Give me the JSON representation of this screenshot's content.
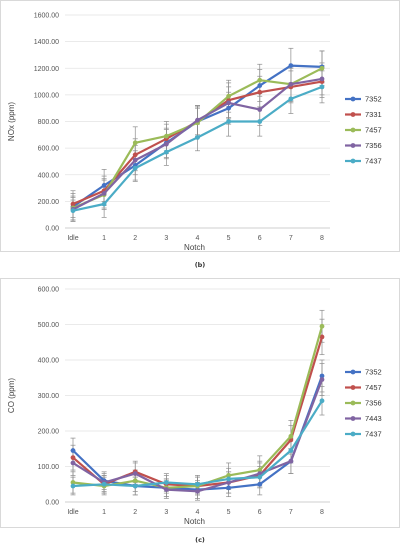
{
  "chart_data": [
    {
      "id": "b",
      "type": "line",
      "caption": "(b)",
      "xlabel": "Notch",
      "ylabel": "NOx (ppm)",
      "categories": [
        "Idle",
        "1",
        "2",
        "3",
        "4",
        "5",
        "6",
        "7",
        "8"
      ],
      "ylim": [
        0,
        1600
      ],
      "yticks": [
        "0.00",
        "200.00",
        "400.00",
        "600.00",
        "800.00",
        "1000.00",
        "1200.00",
        "1400.00",
        "1600.00"
      ],
      "grid": "horizontal",
      "legend": "right",
      "series": [
        {
          "name": "7352",
          "color": "#4472c4",
          "values": [
            160,
            320,
            470,
            640,
            800,
            900,
            1070,
            1220,
            1210
          ],
          "errors": [
            100,
            120,
            110,
            110,
            110,
            120,
            120,
            130,
            120
          ]
        },
        {
          "name": "7331",
          "color": "#c0504d",
          "values": [
            180,
            280,
            550,
            670,
            800,
            960,
            1020,
            1060,
            1100
          ],
          "errors": [
            100,
            110,
            120,
            110,
            120,
            130,
            120,
            120,
            120
          ]
        },
        {
          "name": "7457",
          "color": "#9bbb59",
          "values": [
            150,
            250,
            640,
            690,
            790,
            990,
            1110,
            1080,
            1200
          ],
          "errors": [
            90,
            110,
            120,
            110,
            110,
            120,
            120,
            120,
            130
          ]
        },
        {
          "name": "7356",
          "color": "#8064a2",
          "values": [
            140,
            260,
            510,
            630,
            810,
            940,
            890,
            1080,
            1120
          ],
          "errors": [
            90,
            110,
            110,
            110,
            110,
            120,
            120,
            130,
            120
          ]
        },
        {
          "name": "7437",
          "color": "#4bacc6",
          "values": [
            130,
            180,
            450,
            570,
            680,
            800,
            800,
            970,
            1060
          ],
          "errors": [
            80,
            100,
            100,
            100,
            100,
            110,
            110,
            110,
            120
          ]
        }
      ]
    },
    {
      "id": "c",
      "type": "line",
      "caption": "(c)",
      "xlabel": "Notch",
      "ylabel": "CO (ppm)",
      "categories": [
        "Idle",
        "1",
        "2",
        "3",
        "4",
        "5",
        "6",
        "7",
        "8"
      ],
      "ylim": [
        0,
        600
      ],
      "yticks": [
        "0.00",
        "100.00",
        "200.00",
        "300.00",
        "400.00",
        "500.00",
        "600.00"
      ],
      "grid": "horizontal",
      "legend": "right",
      "series": [
        {
          "name": "7352",
          "color": "#4472c4",
          "values": [
            145,
            60,
            45,
            40,
            35,
            40,
            50,
            115,
            355
          ],
          "errors": [
            35,
            25,
            25,
            25,
            25,
            25,
            30,
            35,
            45
          ]
        },
        {
          "name": "7457",
          "color": "#c0504d",
          "values": [
            125,
            50,
            85,
            50,
            45,
            55,
            75,
            175,
            465
          ],
          "errors": [
            35,
            25,
            30,
            25,
            25,
            30,
            35,
            40,
            50
          ]
        },
        {
          "name": "7356",
          "color": "#9bbb59",
          "values": [
            55,
            45,
            60,
            40,
            45,
            75,
            90,
            185,
            495
          ],
          "errors": [
            30,
            25,
            30,
            25,
            25,
            35,
            40,
            45,
            45
          ]
        },
        {
          "name": "7443",
          "color": "#8064a2",
          "values": [
            110,
            55,
            80,
            35,
            30,
            55,
            80,
            115,
            345
          ],
          "errors": [
            35,
            25,
            30,
            25,
            25,
            30,
            35,
            35,
            45
          ]
        },
        {
          "name": "7437",
          "color": "#4bacc6",
          "values": [
            45,
            50,
            45,
            55,
            50,
            65,
            70,
            145,
            285
          ],
          "errors": [
            25,
            25,
            25,
            25,
            25,
            30,
            30,
            35,
            40
          ]
        }
      ]
    }
  ]
}
